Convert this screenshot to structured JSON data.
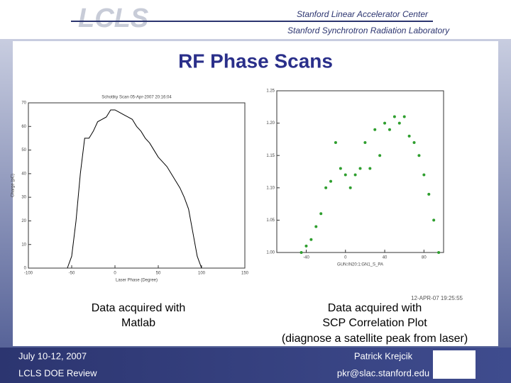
{
  "header": {
    "logo": "LCLS",
    "org_line_1": "Stanford Linear Accelerator Center",
    "org_line_2": "Stanford Synchrotron Radiation Laboratory"
  },
  "slide_title": "RF Phase Scans",
  "chart_data": [
    {
      "type": "line",
      "title": "Schottky Scan 05-Apr-2007 20:16:04",
      "x_label": "Laser Phase (Degree)",
      "y_label": "Charge (pC)",
      "color": "#000000",
      "x": [
        -55,
        -50,
        -45,
        -40,
        -35,
        -30,
        -25,
        -20,
        -15,
        -10,
        -5,
        0,
        5,
        10,
        15,
        20,
        25,
        30,
        35,
        40,
        45,
        50,
        55,
        60,
        65,
        70,
        75,
        80,
        85,
        90,
        95,
        100
      ],
      "values": [
        0,
        5,
        20,
        40,
        55,
        55,
        58,
        62,
        63,
        64,
        67,
        67,
        66,
        65,
        64,
        63,
        60,
        58,
        55,
        53,
        50,
        47,
        45,
        43,
        40,
        37,
        34,
        30,
        25,
        15,
        5,
        0
      ],
      "xlim": [
        -100,
        150
      ],
      "xticks": [
        -100,
        -50,
        0,
        50,
        100,
        150
      ],
      "ylim": [
        0,
        70
      ],
      "yticks": [
        0,
        10,
        20,
        30,
        40,
        50,
        60,
        70
      ]
    },
    {
      "type": "scatter",
      "x_label": "GUN:IN20:1:GN1_S_PA",
      "color": "#2e9e2e",
      "x": [
        -45,
        -40,
        -35,
        -30,
        -25,
        -20,
        -15,
        -10,
        -5,
        0,
        5,
        10,
        15,
        20,
        25,
        30,
        35,
        40,
        45,
        50,
        55,
        60,
        65,
        70,
        75,
        80,
        85,
        90,
        95
      ],
      "values": [
        1.0,
        1.01,
        1.02,
        1.04,
        1.06,
        1.1,
        1.11,
        1.17,
        1.13,
        1.12,
        1.1,
        1.12,
        1.13,
        1.17,
        1.13,
        1.19,
        1.15,
        1.2,
        1.19,
        1.21,
        1.2,
        1.21,
        1.18,
        1.17,
        1.15,
        1.12,
        1.09,
        1.05,
        1.0
      ],
      "xlim": [
        -70,
        100
      ],
      "xticks": [
        -40,
        0,
        40,
        80
      ],
      "ylim": [
        1.0,
        1.25
      ],
      "yticks": [
        {
          "value": 1.0,
          "label": "1.00"
        },
        {
          "value": 1.05,
          "label": "1.05"
        },
        {
          "value": 1.1,
          "label": "1.10"
        },
        {
          "value": 1.15,
          "label": "1.15"
        },
        {
          "value": 1.2,
          "label": "1.20"
        },
        {
          "value": 1.25,
          "label": "1.25"
        }
      ],
      "timestamp": "12-APR-07 19:25:55"
    }
  ],
  "captions": {
    "left": [
      "Data acquired with",
      "Matlab"
    ],
    "right": [
      "Data acquired with",
      "SCP Correlation Plot",
      "(diagnose a satellite peak from laser)"
    ]
  },
  "footer": {
    "date": "July 10-12, 2007",
    "event": "LCLS DOE Review",
    "author": "Patrick Krejcik",
    "email": "pkr@slac.stanford.edu"
  }
}
